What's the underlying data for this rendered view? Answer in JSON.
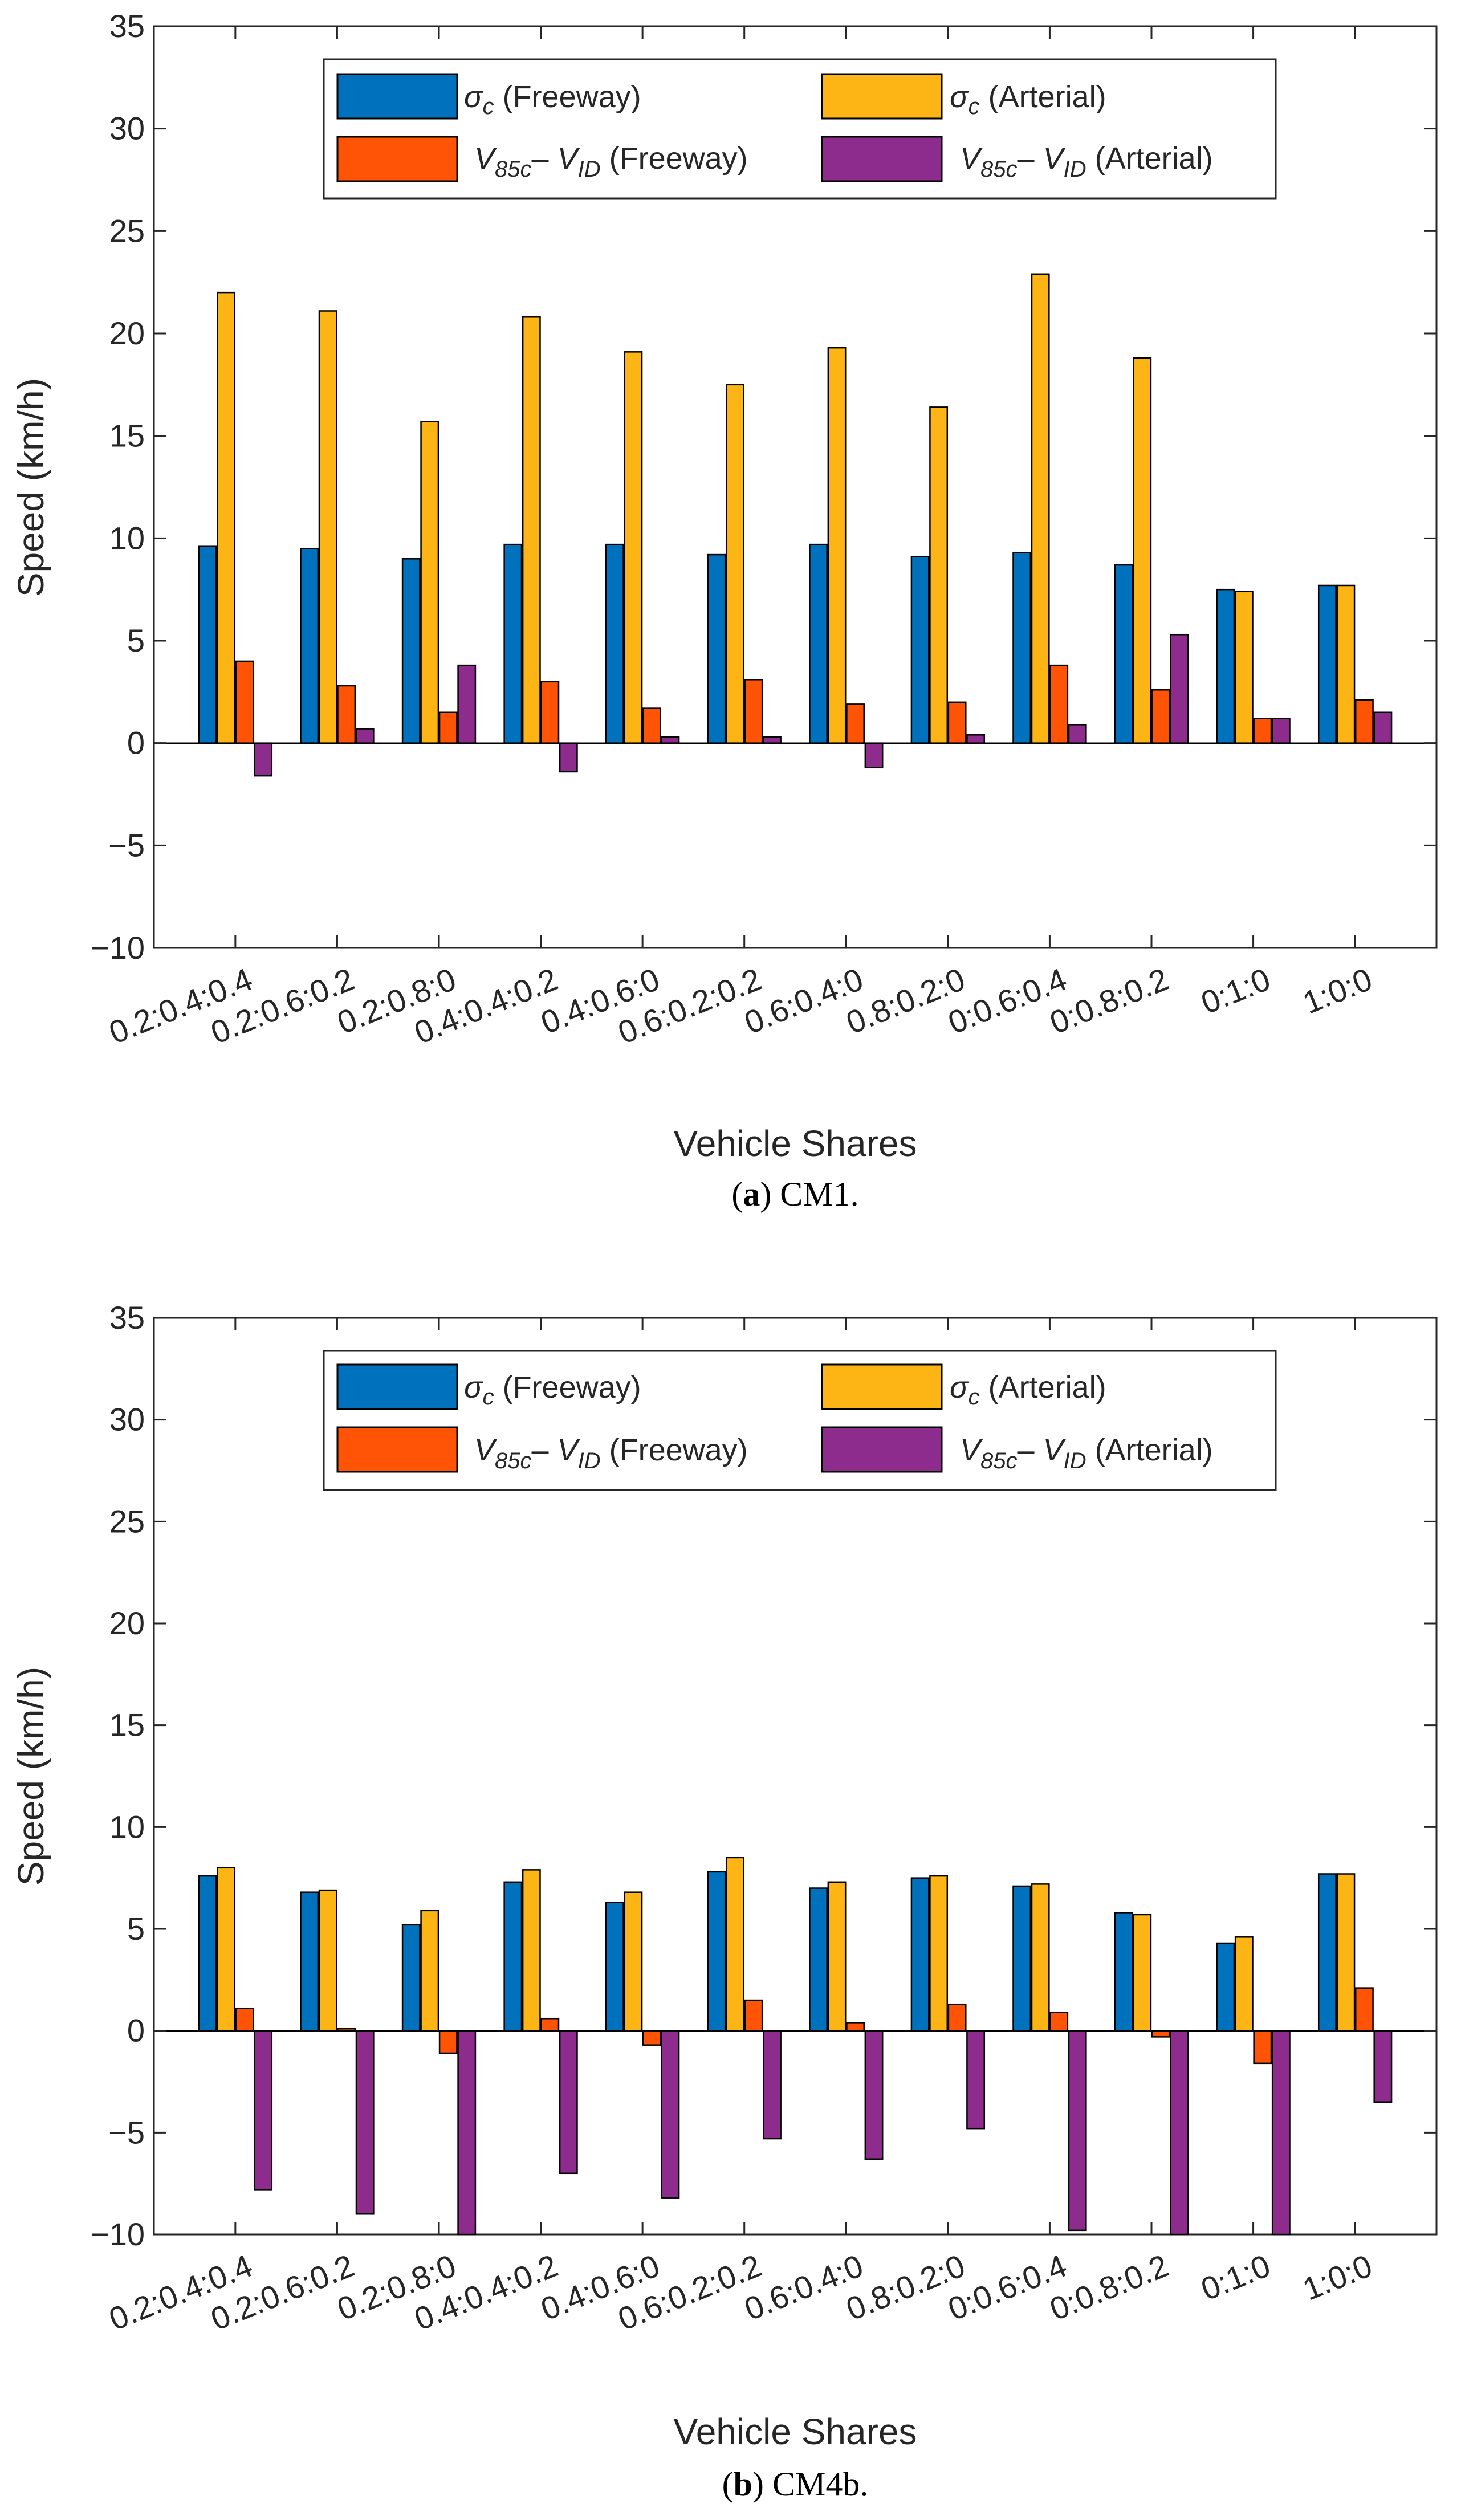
{
  "figure": {
    "series_colors": [
      "#0072BD",
      "#FDB515",
      "#FF5306",
      "#8E2C8E"
    ],
    "panels": [
      {
        "caption": {
          "open": "(",
          "label": "a",
          "rest": ") CM1."
        },
        "chart_data": {
          "type": "bar",
          "title": "",
          "xlabel": "Vehicle Shares",
          "ylabel": "Speed (km/h)",
          "ylim": [
            -10,
            35
          ],
          "yticks": [
            -10,
            -5,
            0,
            5,
            10,
            15,
            20,
            25,
            30,
            35
          ],
          "ytick_labels": [
            "−10",
            "−5",
            "0",
            "5",
            "10",
            "15",
            "20",
            "25",
            "30",
            "35"
          ],
          "grid": false,
          "legend_position": "top-center",
          "categories": [
            "0.2:0.4:0.4",
            "0.2:0.6:0.2",
            "0.2:0.8:0",
            "0.4:0.4:0.2",
            "0.4:0.6:0",
            "0.6:0.2:0.2",
            "0.6:0.4:0",
            "0.8:0.2:0",
            "0:0.6:0.4",
            "0:0.8:0.2",
            "0:1:0",
            "1:0:0"
          ],
          "series": [
            {
              "name": "σc (Freeway)",
              "values": [
                9.6,
                9.5,
                9.0,
                9.7,
                9.7,
                9.2,
                9.7,
                9.1,
                9.3,
                8.7,
                7.5,
                7.7
              ]
            },
            {
              "name": "σc (Arterial)",
              "values": [
                22.0,
                21.1,
                15.7,
                20.8,
                19.1,
                17.5,
                19.3,
                16.4,
                22.9,
                18.8,
                7.4,
                7.7
              ]
            },
            {
              "name": "V85c– VID (Freeway)",
              "values": [
                4.0,
                2.8,
                1.5,
                3.0,
                1.7,
                3.1,
                1.9,
                2.0,
                3.8,
                2.6,
                1.2,
                2.1
              ]
            },
            {
              "name": "V85c– VID (Arterial)",
              "values": [
                -1.6,
                0.7,
                3.8,
                -1.4,
                0.3,
                0.3,
                -1.2,
                0.4,
                0.9,
                5.3,
                1.2,
                1.5
              ]
            }
          ],
          "legend": [
            {
              "sym": "σ",
              "sub": "c",
              "tail": " (Freeway)"
            },
            {
              "sym": "σ",
              "sub": "c",
              "tail": " (Arterial)"
            },
            {
              "v1": "V",
              "s1": "85c",
              "mid": "– ",
              "v2": "V",
              "s2": "ID",
              "tail": " (Freeway)"
            },
            {
              "v1": "V",
              "s1": "85c",
              "mid": "– ",
              "v2": "V",
              "s2": "ID",
              "tail": " (Arterial)"
            }
          ]
        }
      },
      {
        "caption": {
          "open": "(",
          "label": "b",
          "rest": ") CM4b."
        },
        "chart_data": {
          "type": "bar",
          "title": "",
          "xlabel": "Vehicle Shares",
          "ylabel": "Speed (km/h)",
          "ylim": [
            -10,
            35
          ],
          "yticks": [
            -10,
            -5,
            0,
            5,
            10,
            15,
            20,
            25,
            30,
            35
          ],
          "ytick_labels": [
            "−10",
            "−5",
            "0",
            "5",
            "10",
            "15",
            "20",
            "25",
            "30",
            "35"
          ],
          "grid": false,
          "legend_position": "top-center",
          "categories": [
            "0.2:0.4:0.4",
            "0.2:0.6:0.2",
            "0.2:0.8:0",
            "0.4:0.4:0.2",
            "0.4:0.6:0",
            "0.6:0.2:0.2",
            "0.6:0.4:0",
            "0.8:0.2:0",
            "0:0.6:0.4",
            "0:0.8:0.2",
            "0:1:0",
            "1:0:0"
          ],
          "series": [
            {
              "name": "σc (Freeway)",
              "values": [
                7.6,
                6.8,
                5.2,
                7.3,
                6.3,
                7.8,
                7.0,
                7.5,
                7.1,
                5.8,
                4.3,
                7.7
              ]
            },
            {
              "name": "σc (Arterial)",
              "values": [
                8.0,
                6.9,
                5.9,
                7.9,
                6.8,
                8.5,
                7.3,
                7.6,
                7.2,
                5.7,
                4.6,
                7.7
              ]
            },
            {
              "name": "V85c– VID (Freeway)",
              "values": [
                1.1,
                0.1,
                -1.1,
                0.6,
                -0.7,
                1.5,
                0.4,
                1.3,
                0.9,
                -0.3,
                -1.6,
                2.1
              ]
            },
            {
              "name": "V85c– VID (Arterial)",
              "values": [
                -7.8,
                -9.0,
                -10.0,
                -7.0,
                -8.2,
                -5.3,
                -6.3,
                -4.8,
                -9.8,
                -10.0,
                -10.0,
                -3.5
              ]
            }
          ],
          "legend": [
            {
              "sym": "σ",
              "sub": "c",
              "tail": " (Freeway)"
            },
            {
              "sym": "σ",
              "sub": "c",
              "tail": " (Arterial)"
            },
            {
              "v1": "V",
              "s1": "85c",
              "mid": "– ",
              "v2": "V",
              "s2": "ID",
              "tail": " (Freeway)"
            },
            {
              "v1": "V",
              "s1": "85c",
              "mid": "– ",
              "v2": "V",
              "s2": "ID",
              "tail": " (Arterial)"
            }
          ]
        }
      }
    ]
  }
}
